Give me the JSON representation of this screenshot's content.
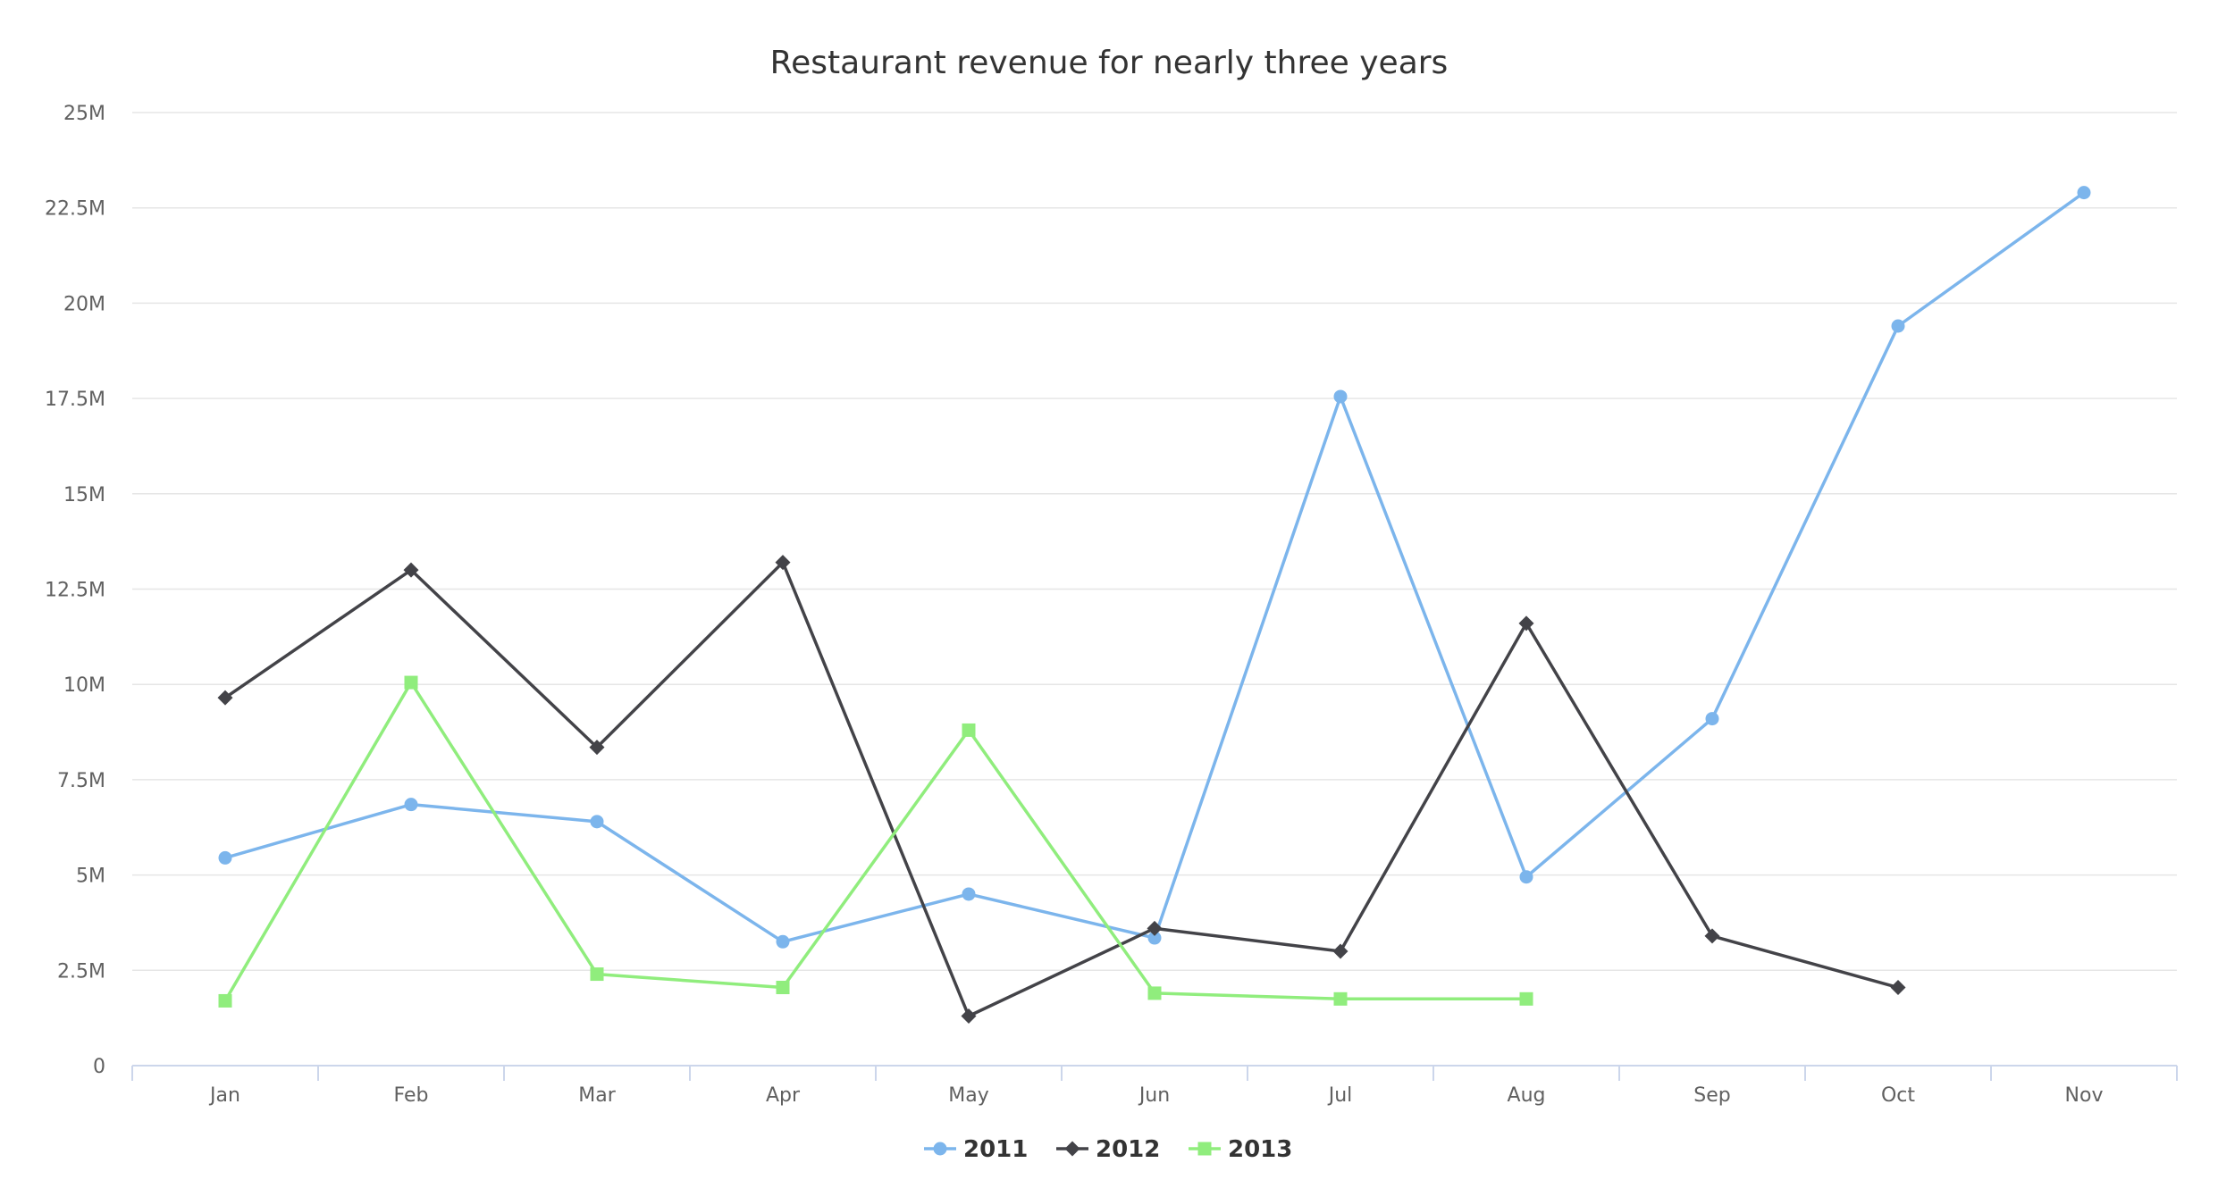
{
  "chart_data": {
    "type": "line",
    "title": "Restaurant revenue for nearly three years",
    "xlabel": "",
    "ylabel": "",
    "categories": [
      "Jan",
      "Feb",
      "Mar",
      "Apr",
      "May",
      "Jun",
      "Jul",
      "Aug",
      "Sep",
      "Oct",
      "Nov"
    ],
    "ylim": [
      0,
      25000000
    ],
    "yticks": [
      0,
      2500000,
      5000000,
      7500000,
      10000000,
      12500000,
      15000000,
      17500000,
      20000000,
      22500000,
      25000000
    ],
    "ytick_labels": [
      "0",
      "2.5M",
      "5M",
      "7.5M",
      "10M",
      "12.5M",
      "15M",
      "17.5M",
      "20M",
      "22.5M",
      "25M"
    ],
    "grid": true,
    "legend_position": "bottom-center",
    "series": [
      {
        "name": "2011",
        "color": "#7cb5ec",
        "marker": "circle",
        "values": [
          5450000,
          6850000,
          6400000,
          3250000,
          4500000,
          3350000,
          17550000,
          4950000,
          9100000,
          19400000,
          22900000
        ]
      },
      {
        "name": "2012",
        "color": "#434348",
        "marker": "diamond",
        "values": [
          9650000,
          13000000,
          8350000,
          13200000,
          1300000,
          3600000,
          3000000,
          11600000,
          3400000,
          2050000,
          null
        ]
      },
      {
        "name": "2013",
        "color": "#90ed7d",
        "marker": "square",
        "values": [
          1700000,
          10050000,
          2400000,
          2050000,
          8800000,
          1900000,
          1750000,
          1750000,
          null,
          null,
          null
        ]
      }
    ]
  }
}
